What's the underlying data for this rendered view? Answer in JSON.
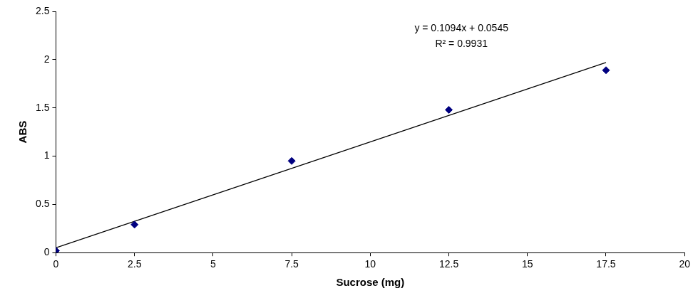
{
  "chart_data": {
    "type": "scatter",
    "x_label": "Sucrose (mg)",
    "y_label": "ABS",
    "annotations": [
      "y = 0.1094x + 0.0545",
      "R² = 0.9931"
    ],
    "series": [
      {
        "type": "scatter",
        "color": "#000080",
        "marker": "diamond",
        "x": [
          0,
          2.5,
          7.5,
          12.5,
          17.5
        ],
        "values": [
          0.02,
          0.29,
          0.95,
          1.48,
          1.89
        ]
      },
      {
        "type": "line",
        "color": "#000000",
        "line_style": "solid",
        "marker": "none",
        "x": [
          0,
          17.5
        ],
        "values": [
          0.05,
          1.97
        ]
      }
    ],
    "xlim": [
      0,
      20
    ],
    "xticks": [
      0,
      2.5,
      5,
      7.5,
      10,
      12.5,
      15,
      17.5,
      20
    ],
    "ylim": [
      0,
      2.5
    ],
    "yticks": [
      0,
      0.5,
      1,
      1.5,
      2,
      2.5
    ],
    "grid": false
  }
}
